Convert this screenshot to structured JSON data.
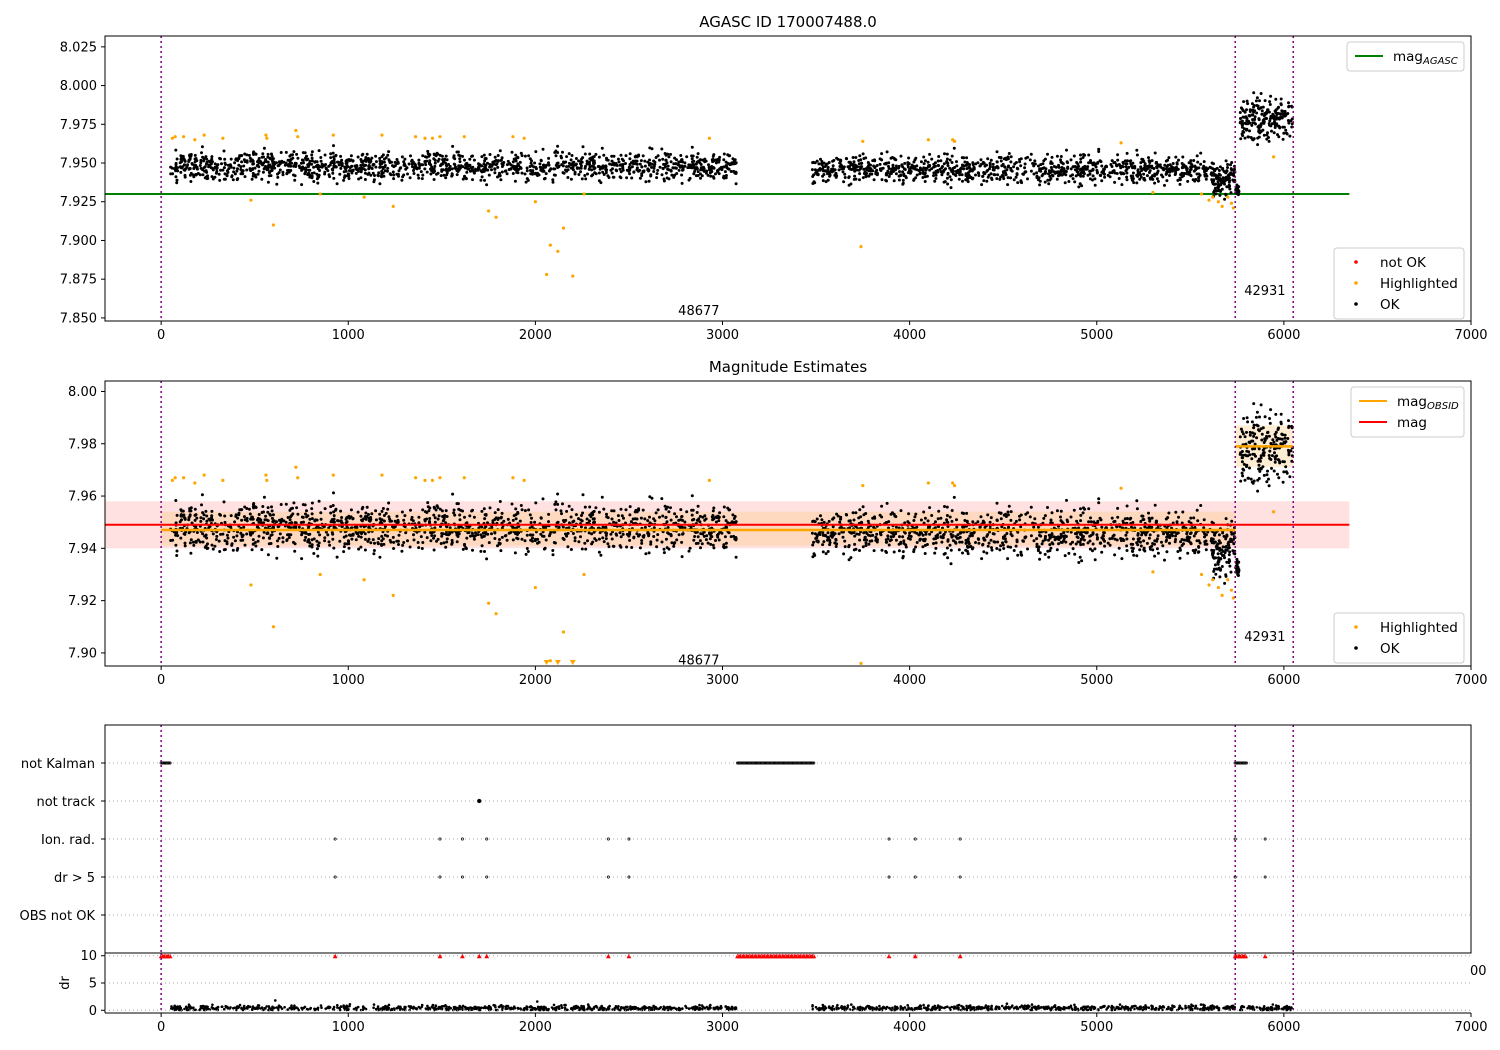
{
  "figure": {
    "background": "#ffffff"
  },
  "chart_data": [
    {
      "type": "scatter",
      "title": "AGASC ID 170007488.0",
      "xlim": [
        -300,
        7000
      ],
      "ylim": [
        7.848,
        8.032
      ],
      "x_ticks": [
        "0",
        "1000",
        "2000",
        "3000",
        "4000",
        "5000",
        "6000",
        "7000"
      ],
      "y_ticks": [
        "7.850",
        "7.875",
        "7.900",
        "7.925",
        "7.950",
        "7.975",
        "8.000",
        "8.025"
      ],
      "mag_agasc": 7.93,
      "mag_agasc_xrange": [
        -300,
        6350
      ],
      "obsid_boundaries": [
        0,
        5740,
        6050
      ],
      "obsid_labels": [
        {
          "text": "48677",
          "x": 2870,
          "y": 7.855
        },
        {
          "text": "42931",
          "x": 5895,
          "y": 7.868
        }
      ],
      "segments": [
        {
          "x": [
            50,
            3075
          ],
          "mean": 7.948,
          "spread": 0.0045,
          "n": 1400
        },
        {
          "x": [
            3480,
            5600
          ],
          "mean": 7.946,
          "spread": 0.0045,
          "n": 1000
        },
        {
          "x": [
            5600,
            5740
          ],
          "mean": 7.94,
          "spread": 0.005,
          "n": 120
        },
        {
          "x": [
            5740,
            5760
          ],
          "mean": 7.933,
          "spread": 0.002,
          "n": 30
        },
        {
          "x": [
            5765,
            6045
          ],
          "mean": 7.978,
          "spread": 0.007,
          "n": 200
        }
      ],
      "highlighted_points": [
        [
          60,
          7.966
        ],
        [
          75,
          7.967
        ],
        [
          120,
          7.967
        ],
        [
          180,
          7.965
        ],
        [
          230,
          7.968
        ],
        [
          330,
          7.966
        ],
        [
          480,
          7.926
        ],
        [
          560,
          7.968
        ],
        [
          565,
          7.966
        ],
        [
          600,
          7.91
        ],
        [
          720,
          7.971
        ],
        [
          730,
          7.967
        ],
        [
          850,
          7.93
        ],
        [
          920,
          7.968
        ],
        [
          1085,
          7.928
        ],
        [
          1180,
          7.968
        ],
        [
          1240,
          7.922
        ],
        [
          1360,
          7.967
        ],
        [
          1410,
          7.966
        ],
        [
          1450,
          7.966
        ],
        [
          1490,
          7.967
        ],
        [
          1620,
          7.967
        ],
        [
          1750,
          7.919
        ],
        [
          1790,
          7.915
        ],
        [
          1880,
          7.967
        ],
        [
          1940,
          7.966
        ],
        [
          2000,
          7.925
        ],
        [
          2060,
          7.878
        ],
        [
          2080,
          7.897
        ],
        [
          2120,
          7.893
        ],
        [
          2150,
          7.908
        ],
        [
          2200,
          7.877
        ],
        [
          2260,
          7.93
        ],
        [
          2930,
          7.966
        ],
        [
          3740,
          7.896
        ],
        [
          3750,
          7.964
        ],
        [
          4100,
          7.965
        ],
        [
          4230,
          7.965
        ],
        [
          4240,
          7.964
        ],
        [
          5130,
          7.963
        ],
        [
          5300,
          7.931
        ],
        [
          5560,
          7.93
        ],
        [
          5600,
          7.926
        ],
        [
          5620,
          7.928
        ],
        [
          5650,
          7.925
        ],
        [
          5670,
          7.922
        ],
        [
          5700,
          7.928
        ],
        [
          5720,
          7.924
        ],
        [
          5730,
          7.921
        ],
        [
          5945,
          7.954
        ]
      ],
      "legends": [
        {
          "entries": [
            {
              "label": "mag",
              "sub": "AGASC",
              "color": "#008000",
              "kind": "line"
            }
          ],
          "position": "upper right"
        },
        {
          "entries": [
            {
              "label": "not OK",
              "color": "#ff0000",
              "kind": "dot"
            },
            {
              "label": "Highlighted",
              "color": "#ffa500",
              "kind": "dot"
            },
            {
              "label": "OK",
              "color": "#000000",
              "kind": "dot"
            }
          ],
          "position": "lower right"
        }
      ],
      "colors": {
        "ok": "#000000",
        "highlighted": "#ffa500",
        "not_ok": "#ff0000",
        "mag_agasc": "#008000",
        "boundary": "#800080"
      }
    },
    {
      "type": "scatter",
      "title": "Magnitude Estimates",
      "xlim": [
        -300,
        7000
      ],
      "ylim": [
        7.895,
        8.004
      ],
      "x_ticks": [
        "0",
        "1000",
        "2000",
        "3000",
        "4000",
        "5000",
        "6000",
        "7000"
      ],
      "y_ticks": [
        "7.90",
        "7.92",
        "7.94",
        "7.96",
        "7.98",
        "8.00"
      ],
      "mag": 7.949,
      "mag_band": [
        7.94,
        7.958
      ],
      "mag_xrange": [
        -300,
        6350
      ],
      "obsid_mags": [
        {
          "x": [
            0,
            5740
          ],
          "mag": 7.947,
          "band": [
            7.941,
            7.954
          ]
        },
        {
          "x": [
            5740,
            6050
          ],
          "mag": 7.979,
          "band": [
            7.971,
            7.987
          ]
        }
      ],
      "obsid_boundaries": [
        0,
        5740,
        6050
      ],
      "obsid_labels": [
        {
          "text": "48677",
          "x": 2870,
          "y": 7.8975
        },
        {
          "text": "42931",
          "x": 5895,
          "y": 7.9065
        }
      ],
      "legends": [
        {
          "entries": [
            {
              "label": "mag",
              "sub": "OBSID",
              "color": "#ffa500",
              "kind": "line"
            },
            {
              "label": "mag",
              "color": "#ff0000",
              "kind": "line"
            }
          ],
          "position": "upper right"
        },
        {
          "entries": [
            {
              "label": "Highlighted",
              "color": "#ffa500",
              "kind": "dot"
            },
            {
              "label": "OK",
              "color": "#000000",
              "kind": "dot"
            }
          ],
          "position": "lower right"
        }
      ],
      "colors": {
        "ok": "#000000",
        "highlighted": "#ffa500",
        "mag": "#ff0000",
        "mag_obsid": "#ffa500",
        "band": "#ffb3b3",
        "obsid_band": "#ffcc80"
      }
    },
    {
      "type": "scatter",
      "title": "",
      "xlim": [
        -300,
        7000
      ],
      "categories": [
        "not Kalman",
        "not track",
        "Ion. rad.",
        "dr > 5",
        "OBS not OK"
      ],
      "flags": {
        "not Kalman": [
          [
            0,
            50
          ],
          [
            3080,
            3490
          ],
          [
            5740,
            5800
          ]
        ],
        "not track": [
          1700
        ],
        "Ion. rad.": [
          930,
          1490,
          1610,
          1740,
          2390,
          2500,
          3890,
          4030,
          4270,
          5740,
          5900
        ],
        "dr > 5": [
          930,
          1490,
          1610,
          1740,
          2390,
          2500,
          3890,
          4030,
          4270,
          5740,
          5900
        ],
        "OBS not OK": []
      },
      "obsid_boundaries": [
        0,
        5740,
        6050
      ],
      "colors": {
        "flag": "#000000",
        "gridline": "#aaaaaa",
        "boundary": "#800080"
      }
    },
    {
      "type": "scatter",
      "title": "",
      "xlim": [
        -300,
        7000
      ],
      "ylim": [
        -0.5,
        10.5
      ],
      "ylabel": "dr",
      "x_ticks": [
        "0",
        "1000",
        "2000",
        "3000",
        "4000",
        "5000",
        "6000",
        "7000"
      ],
      "y_ticks": [
        "0",
        "5",
        "10"
      ],
      "clipped_tick_text": "00",
      "dr_base": 0.4,
      "dr_spread": 0.25,
      "spikes": [
        [
          610,
          1.8
        ],
        [
          2010,
          1.6
        ],
        [
          4520,
          1.2
        ]
      ],
      "capped_points": [
        [
          0,
          50
        ],
        [
          930
        ],
        [
          1490
        ],
        [
          1610
        ],
        [
          1700
        ],
        [
          1740
        ],
        [
          2390
        ],
        [
          2500
        ],
        [
          3080,
          3490
        ],
        [
          3890
        ],
        [
          4030
        ],
        [
          4270
        ],
        [
          5740,
          5800
        ],
        [
          5900
        ]
      ],
      "colors": {
        "ok": "#000000",
        "capped": "#ff0000",
        "boundary": "#800080"
      }
    }
  ]
}
